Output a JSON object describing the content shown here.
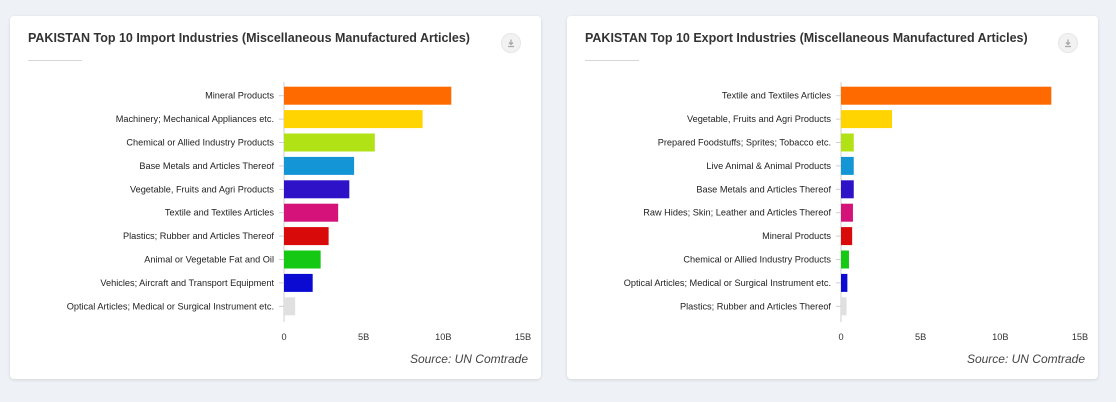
{
  "charts": [
    {
      "title": "PAKISTAN Top 10 Import Industries (Miscellaneous Manufactured Articles)",
      "download_icon": "download-icon",
      "source": "Source: UN Comtrade",
      "chart_data": {
        "type": "bar",
        "orientation": "horizontal",
        "title": "PAKISTAN Top 10 Import Industries (Miscellaneous Manufactured Articles)",
        "categories": [
          "Mineral Products",
          "Machinery; Mechanical Appliances etc.",
          "Chemical or Allied Industry Products",
          "Base Metals and Articles Thereof",
          "Vegetable, Fruits and Agri Products",
          "Textile and Textiles Articles",
          "Plastics; Rubber and Articles Thereof",
          "Animal or Vegetable Fat and Oil",
          "Vehicles; Aircraft and Transport Equipment",
          "Optical Articles; Medical or Surgical Instrument etc."
        ],
        "values": [
          10.5,
          8.7,
          5.7,
          4.4,
          4.1,
          3.4,
          2.8,
          2.3,
          1.8,
          0.7
        ],
        "unit": "B",
        "colors": [
          "#ff6a00",
          "#ffd400",
          "#b0e216",
          "#1496d6",
          "#2e12c8",
          "#d4127a",
          "#d80a0a",
          "#14c814",
          "#0a0ad2",
          "#e0e0e0"
        ],
        "xticks": [
          "0",
          "5B",
          "10B",
          "15B"
        ],
        "xtick_values": [
          0,
          5,
          10,
          15
        ],
        "xlim": [
          0,
          15
        ],
        "xlabel": "",
        "ylabel": ""
      }
    },
    {
      "title": "PAKISTAN Top 10 Export Industries (Miscellaneous Manufactured Articles)",
      "download_icon": "download-icon",
      "source": "Source: UN Comtrade",
      "chart_data": {
        "type": "bar",
        "orientation": "horizontal",
        "title": "PAKISTAN Top 10 Export Industries (Miscellaneous Manufactured Articles)",
        "categories": [
          "Textile and Textiles Articles",
          "Vegetable, Fruits and Agri Products",
          "Prepared Foodstuffs; Sprites; Tobacco etc.",
          "Live Animal & Animal Products",
          "Base Metals and Articles Thereof",
          "Raw Hides; Skin; Leather and Articles Thereof",
          "Mineral Products",
          "Chemical or Allied Industry Products",
          "Optical Articles; Medical or Surgical Instrument etc.",
          "Plastics; Rubber and Articles Thereof"
        ],
        "values": [
          13.2,
          3.2,
          0.8,
          0.8,
          0.8,
          0.75,
          0.7,
          0.5,
          0.4,
          0.35
        ],
        "unit": "B",
        "colors": [
          "#ff6a00",
          "#ffd400",
          "#b0e216",
          "#1496d6",
          "#2e12c8",
          "#d4127a",
          "#d80a0a",
          "#14c814",
          "#0a0ad2",
          "#e0e0e0"
        ],
        "xticks": [
          "0",
          "5B",
          "10B",
          "15B"
        ],
        "xtick_values": [
          0,
          5,
          10,
          15
        ],
        "xlim": [
          0,
          15
        ],
        "xlabel": "",
        "ylabel": ""
      }
    }
  ]
}
